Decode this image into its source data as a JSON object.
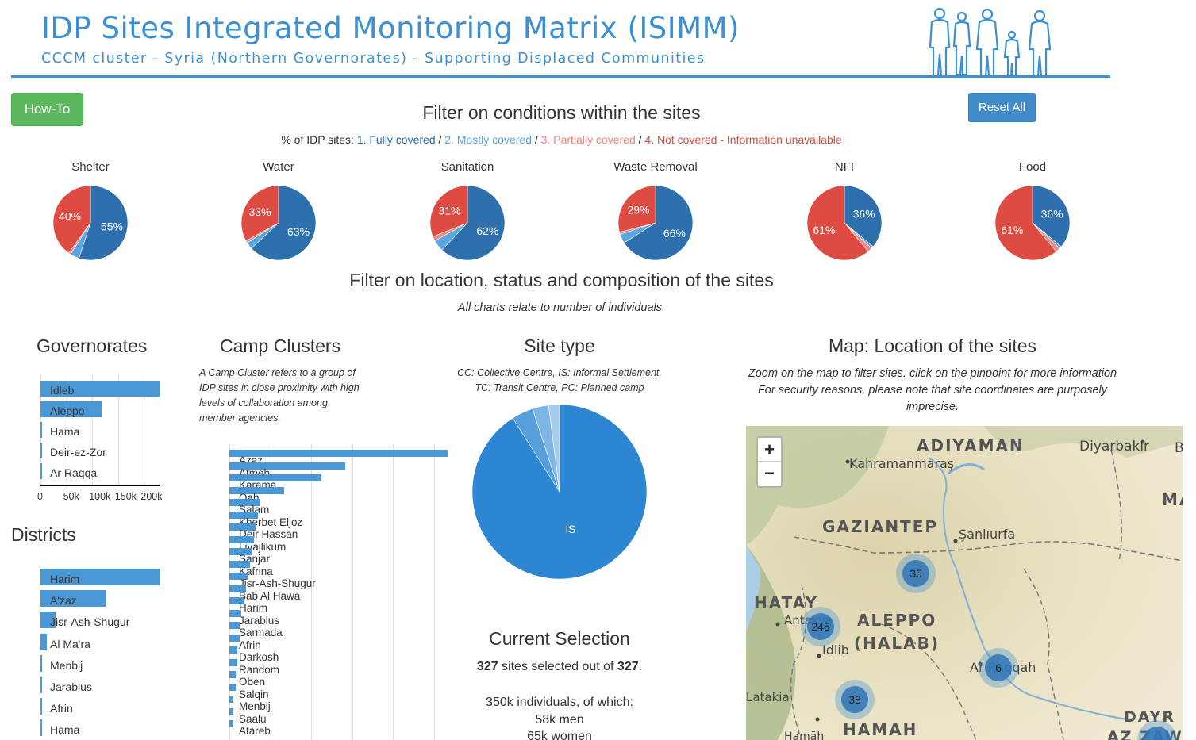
{
  "header": {
    "title": "IDP Sites Integrated Monitoring Matrix (ISIMM)",
    "subtitle": "CCCM cluster - Syria (Northern Governorates) - Supporting Displaced Communities",
    "people_icon": "people-silhouette-icon"
  },
  "buttons": {
    "howto": "How-To",
    "reset": "Reset All"
  },
  "conditions": {
    "title": "Filter on conditions within the sites",
    "legend_prefix": "% of IDP sites:",
    "legend_1": "1. Fully covered",
    "legend_2": "2. Mostly covered",
    "legend_3": "3. Partially covered",
    "legend_4": "4. Not covered - Information unavailable",
    "sep": "/",
    "colors": {
      "fully": "#2e6fad",
      "mostly": "#5aa6e2",
      "partially": "#ef8a83",
      "not": "#dd4b42"
    }
  },
  "chart_data": [
    {
      "type": "pie",
      "title": "Shelter",
      "labels": [
        "1. Fully covered",
        "2. Mostly covered",
        "3. Partially covered",
        "4. Not covered"
      ],
      "values": [
        55,
        4,
        1,
        40
      ],
      "value_labels": [
        "55%",
        "",
        "",
        "40%"
      ]
    },
    {
      "type": "pie",
      "title": "Water",
      "labels": [
        "1. Fully covered",
        "2. Mostly covered",
        "3. Partially covered",
        "4. Not covered"
      ],
      "values": [
        63,
        3,
        1,
        33
      ],
      "value_labels": [
        "63%",
        "",
        "",
        "33%"
      ]
    },
    {
      "type": "pie",
      "title": "Sanitation",
      "labels": [
        "1. Fully covered",
        "2. Mostly covered",
        "3. Partially covered",
        "4. Not covered"
      ],
      "values": [
        62,
        5,
        2,
        31
      ],
      "value_labels": [
        "62%",
        "",
        "",
        "31%"
      ]
    },
    {
      "type": "pie",
      "title": "Waste Removal",
      "labels": [
        "1. Fully covered",
        "2. Mostly covered",
        "3. Partially covered",
        "4. Not covered"
      ],
      "values": [
        66,
        4,
        1,
        29
      ],
      "value_labels": [
        "66%",
        "",
        "",
        "29%"
      ]
    },
    {
      "type": "pie",
      "title": "NFI",
      "labels": [
        "1. Fully covered",
        "2. Mostly covered",
        "3. Partially covered",
        "4. Not covered"
      ],
      "values": [
        36,
        1,
        2,
        61
      ],
      "value_labels": [
        "36%",
        "",
        "",
        "61%"
      ]
    },
    {
      "type": "pie",
      "title": "Food",
      "labels": [
        "1. Fully covered",
        "2. Mostly covered",
        "3. Partially covered",
        "4. Not covered"
      ],
      "values": [
        36,
        1,
        2,
        61
      ],
      "value_labels": [
        "36%",
        "",
        "",
        "61%"
      ]
    },
    {
      "type": "bar",
      "title": "Governorates",
      "categories": [
        "Idleb",
        "Aleppo",
        "Hama",
        "Deir-ez-Zor",
        "Ar Raqqa"
      ],
      "values": [
        230000,
        118000,
        1000,
        1000,
        500
      ],
      "xticks": [
        "0",
        "50k",
        "100k",
        "150k",
        "200k"
      ],
      "xlim": [
        0,
        230000
      ]
    },
    {
      "type": "bar",
      "title": "Districts",
      "categories": [
        "Harim",
        "A'zaz",
        "Jisr-Ash-Shugur",
        "Al Ma'ra",
        "Menbij",
        "Jarablus",
        "Afrin",
        "Hama"
      ],
      "values": [
        158000,
        87000,
        20000,
        8000,
        2000,
        2000,
        1500,
        1000
      ]
    },
    {
      "type": "bar",
      "title": "Camp Clusters",
      "categories": [
        "Azaz",
        "Atmeh",
        "Karama",
        "Qah",
        "Salam",
        "Kherbet Eljoz",
        "Deir Hassan",
        "Livajlikum",
        "Sanjar",
        "Kafrina",
        "Jisr-Ash-Shugur",
        "Bab Al Hawa",
        "Harim",
        "Jarablus",
        "Sarmada",
        "Afrin",
        "Darkosh",
        "Random",
        "Oben",
        "Salqin",
        "Menbij",
        "Saalu",
        "Atareb"
      ],
      "values": [
        107,
        57,
        45,
        27,
        15,
        14,
        13,
        12,
        11,
        10,
        9,
        8,
        7,
        6,
        5,
        5,
        4,
        4,
        3,
        3,
        2,
        2,
        2
      ]
    },
    {
      "type": "pie",
      "title": "Site type",
      "labels": [
        "IS",
        "CC",
        "TC",
        "PC"
      ],
      "values": [
        91,
        4,
        3,
        2
      ],
      "value_labels": [
        "IS",
        "",
        "",
        ""
      ]
    }
  ],
  "location": {
    "title": "Filter on location, status and composition of the sites",
    "subtitle": "All charts relate to number of individuals."
  },
  "camp_clusters": {
    "title": "Camp Clusters",
    "note": "A Camp Cluster refers to a group of IDP sites in close proximity with high levels of collaboration among member agencies."
  },
  "site_type": {
    "title": "Site type",
    "note1": "CC: Collective Centre, IS: Informal Settlement,",
    "note2": "TC: Transit Centre, PC: Planned camp",
    "label_is": "IS"
  },
  "map": {
    "title": "Map: Location of the sites",
    "note1": "Zoom on the map to filter sites. click on the pinpoint for more information",
    "note2": "For security reasons, please note that site coordinates are purposely",
    "note3": "imprecise.",
    "zoom_in": "+",
    "zoom_out": "−",
    "places": [
      "ADIYAMAN",
      "Diyarbakır",
      "Kahramanmaraş",
      "GAZIANTEP",
      "Şanlıurfa",
      "HATAY",
      "Antakya",
      "ALEPPO",
      "(HALAB)",
      "Idlib",
      "Ar Raqqah",
      "Latakia",
      "HAMAH",
      "Hamāh",
      "DAYR",
      "AZ ZAWR",
      "MA",
      "B"
    ],
    "clusters": [
      "35",
      "245",
      "6",
      "38"
    ]
  },
  "selection": {
    "title": "Current Selection",
    "selected": "327",
    "total": "327",
    "text_mid": " sites selected out of ",
    "text_end": ".",
    "individuals": "350k individuals, of which:",
    "men": "58k men",
    "women": "65k women"
  }
}
